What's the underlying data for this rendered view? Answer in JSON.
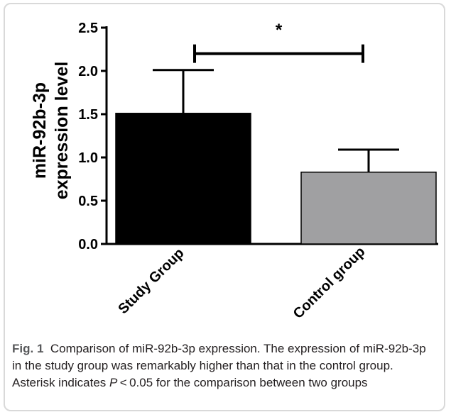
{
  "chart_data": {
    "type": "bar",
    "categories": [
      "Study Group",
      "Control group"
    ],
    "values": [
      1.51,
      0.83
    ],
    "error_bars_upper": [
      2.01,
      1.09
    ],
    "colors": [
      "#000000",
      "#a0a0a2"
    ],
    "ylabel_line1": "miR-92b-3p",
    "ylabel_line2": "expression level",
    "xlabel": "",
    "ylim": [
      0,
      2.5
    ],
    "yticks": [
      0.0,
      0.5,
      1.0,
      1.5,
      2.0,
      2.5
    ],
    "ytick_labels": [
      "0.0",
      "0.5",
      "1.0",
      "1.5",
      "2.0",
      "2.5"
    ],
    "grid": false,
    "significance": {
      "marker": "*",
      "between": [
        "Study Group",
        "Control group"
      ],
      "y": 2.2
    }
  },
  "caption": {
    "label": "Fig. 1",
    "text_before_p": "Comparison of miR-92b-3p expression. The expression of miR-92b-3p in the study group was remarkably higher than that in the control group. Asterisk indicates ",
    "p_symbol": "P",
    "text_after_p": " < 0.05 for the comparison between two groups"
  }
}
